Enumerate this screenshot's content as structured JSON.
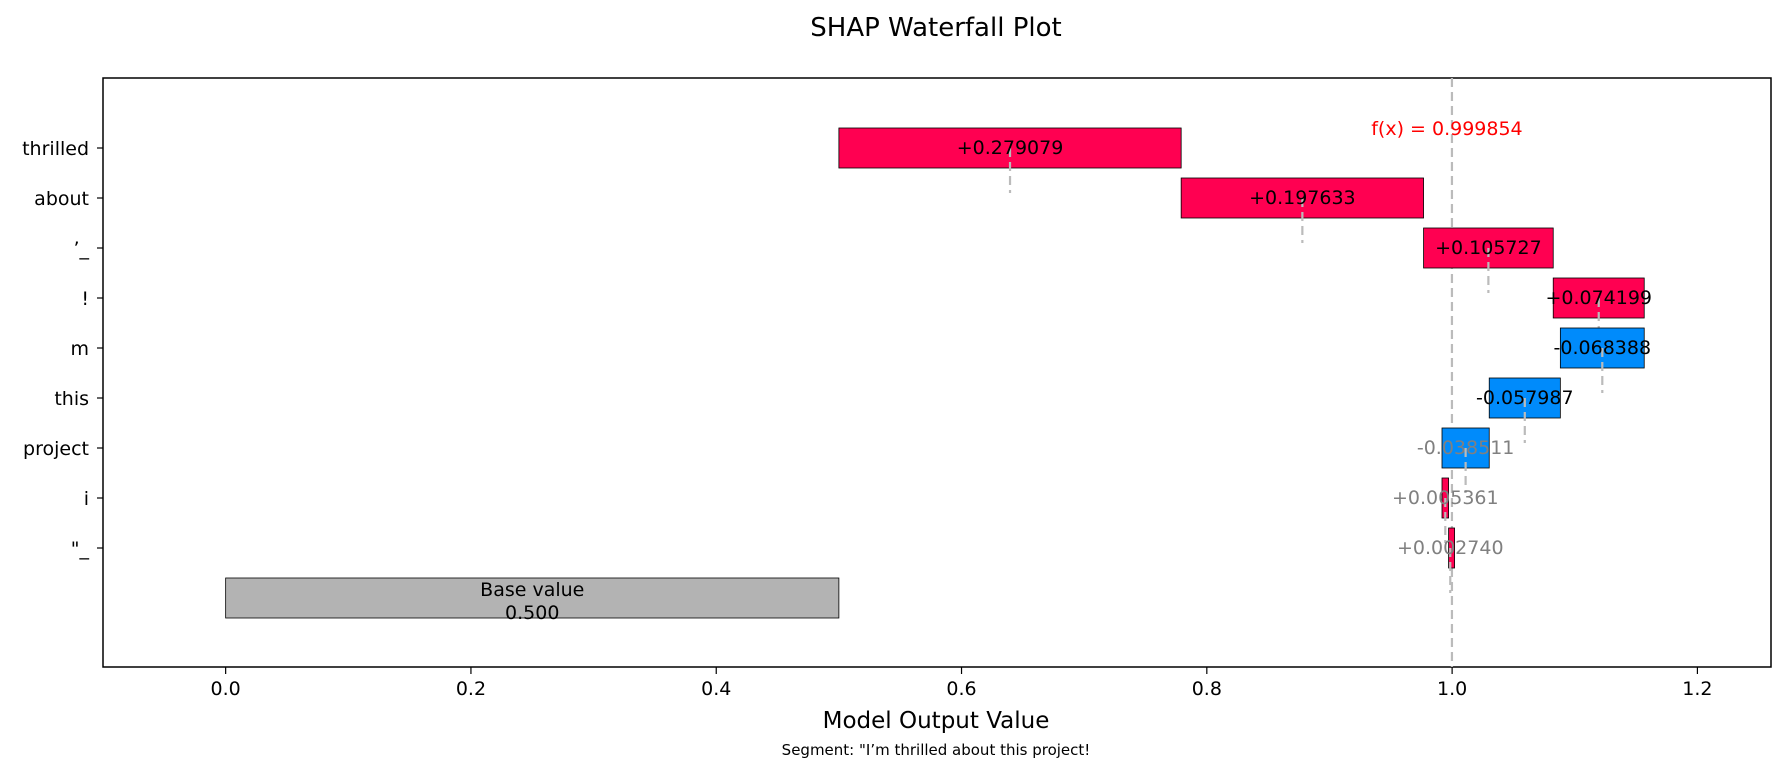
{
  "chart_data": {
    "type": "bar",
    "subtype": "waterfall",
    "title": "SHAP Waterfall Plot",
    "xlabel": "Model Output Value",
    "note": "Segment: \"I’m thrilled about this project!",
    "xlim": [
      -0.1,
      1.26
    ],
    "x_ticks": [
      "0.0",
      "0.2",
      "0.4",
      "0.6",
      "0.8",
      "1.0",
      "1.2"
    ],
    "x_tick_values": [
      0.0,
      0.2,
      0.4,
      0.6,
      0.8,
      1.0,
      1.2
    ],
    "base_value": 0.5,
    "base_label_line1": "Base value",
    "base_label_line2": "0.500",
    "final_value": 0.999854,
    "fx_label": "f(x) = 0.999854",
    "features": [
      {
        "name": "thrilled",
        "value": 0.279079,
        "label": "+0.279079"
      },
      {
        "name": "about",
        "value": 0.197633,
        "label": "+0.197633"
      },
      {
        "name": "’_",
        "value": 0.105727,
        "label": "+0.105727"
      },
      {
        "name": "!",
        "value": 0.074199,
        "label": "+0.074199"
      },
      {
        "name": "m",
        "value": -0.068388,
        "label": "-0.068388"
      },
      {
        "name": "this",
        "value": -0.057987,
        "label": "-0.057987"
      },
      {
        "name": "project",
        "value": -0.038511,
        "label": "-0.038511"
      },
      {
        "name": "i",
        "value": 0.005361,
        "label": "+0.005361"
      },
      {
        "name": "\"_",
        "value": 0.00274,
        "label": "+0.002740"
      }
    ],
    "colors": {
      "positive": "#ff0051",
      "negative": "#008bfb",
      "base": "#b3b3b3",
      "fx_line": "#bbbbbb",
      "fx_text": "#ff0000",
      "minor_label": "#808080"
    },
    "grid": false,
    "legend": "none"
  }
}
